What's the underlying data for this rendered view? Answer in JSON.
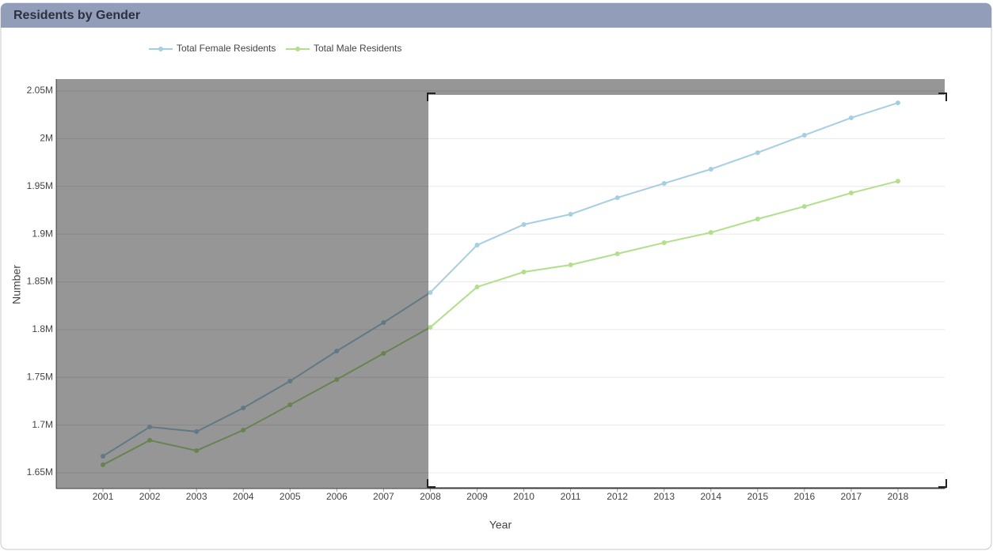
{
  "chart_data": {
    "type": "line",
    "title": "Residents by Gender",
    "x_label": "Year",
    "y_label": "Number",
    "x": [
      2001,
      2002,
      2003,
      2004,
      2005,
      2006,
      2007,
      2008,
      2009,
      2010,
      2011,
      2012,
      2013,
      2014,
      2015,
      2016,
      2017,
      2018
    ],
    "series": [
      {
        "name": "Total Female Residents",
        "color": "#a6cee3",
        "values": [
          1667400,
          1698000,
          1693100,
          1717900,
          1746000,
          1777500,
          1807300,
          1838800,
          1888500,
          1910000,
          1920800,
          1938100,
          1953100,
          1968000,
          1985300,
          2003600,
          2021800,
          2037500
        ]
      },
      {
        "name": "Total Male Residents",
        "color": "#b2df8a",
        "values": [
          1658300,
          1684000,
          1673200,
          1694700,
          1721200,
          1747700,
          1775000,
          1802400,
          1844600,
          1860300,
          1867800,
          1879400,
          1891000,
          1901700,
          1915800,
          1929000,
          1943100,
          1955500
        ]
      }
    ],
    "xlim": [
      2000,
      2019
    ],
    "xticks": [
      2001,
      2002,
      2003,
      2004,
      2005,
      2006,
      2007,
      2008,
      2009,
      2010,
      2011,
      2012,
      2013,
      2014,
      2015,
      2016,
      2017,
      2018
    ],
    "ylim": [
      1633400,
      2062400
    ],
    "yticks": [
      {
        "value": 1650000,
        "label": "1.65M"
      },
      {
        "value": 1700000,
        "label": "1.7M"
      },
      {
        "value": 1750000,
        "label": "1.75M"
      },
      {
        "value": 1800000,
        "label": "1.8M"
      },
      {
        "value": 1850000,
        "label": "1.85M"
      },
      {
        "value": 1900000,
        "label": "1.9M"
      },
      {
        "value": 1950000,
        "label": "1.95M"
      },
      {
        "value": 2000000,
        "label": "2M"
      },
      {
        "value": 2050000,
        "label": "2.05M"
      }
    ],
    "grid": true,
    "legend": "top"
  }
}
